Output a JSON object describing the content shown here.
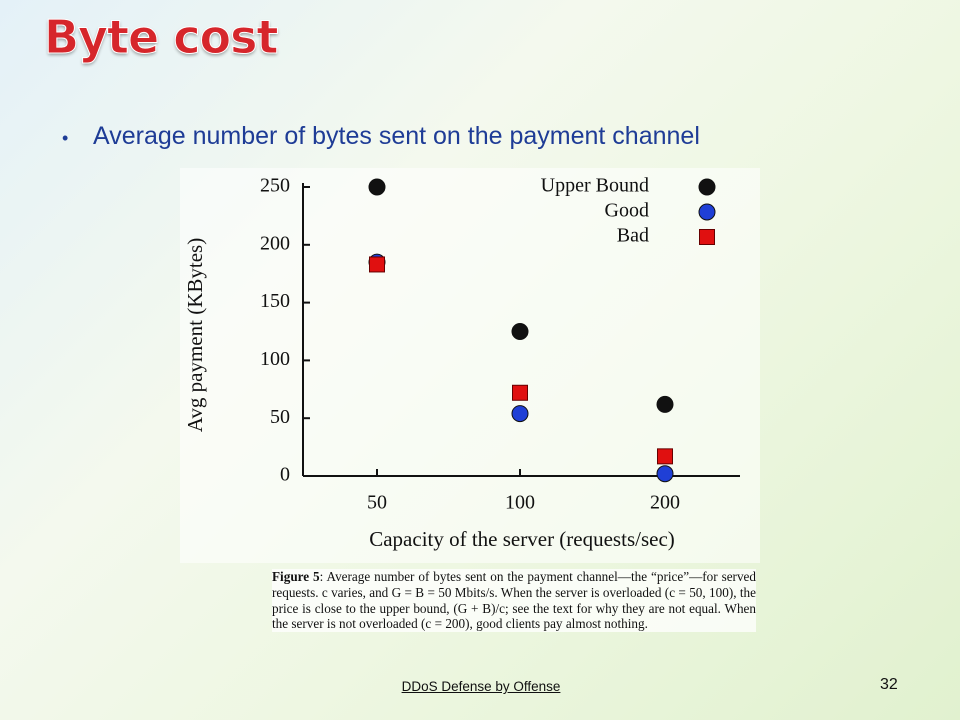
{
  "slide": {
    "title": "Byte cost",
    "bullet": "Average number of bytes sent on the payment channel",
    "caption_label": "Figure 5",
    "caption": ": Average number of bytes sent on the payment channel—the “price”—for served requests. c varies, and G = B = 50 Mbits/s. When the server is overloaded (c = 50, 100), the price is close to the upper bound, (G + B)/c; see the text for why they are not equal. When the server is not overloaded (c = 200), good clients pay almost nothing.",
    "footer": "DDoS Defense by Offense",
    "page_number": "32"
  },
  "chart_data": {
    "type": "scatter",
    "x_label": "Capacity of the server (requests/sec)",
    "y_label": "Avg payment (KBytes)",
    "categories": [
      "50",
      "100",
      "200"
    ],
    "series": [
      {
        "name": "Upper Bound",
        "color": "#111111",
        "marker": "circle",
        "values": [
          250,
          125,
          62
        ]
      },
      {
        "name": "Good",
        "color": "#1f3fd6",
        "marker": "circle",
        "values": [
          185,
          54,
          2
        ]
      },
      {
        "name": "Bad",
        "color": "#e01010",
        "marker": "square",
        "values": [
          183,
          72,
          17
        ]
      }
    ],
    "ylim": [
      0,
      250
    ],
    "yticks": [
      0,
      50,
      100,
      150,
      200,
      250
    ],
    "legend": "upper right"
  }
}
